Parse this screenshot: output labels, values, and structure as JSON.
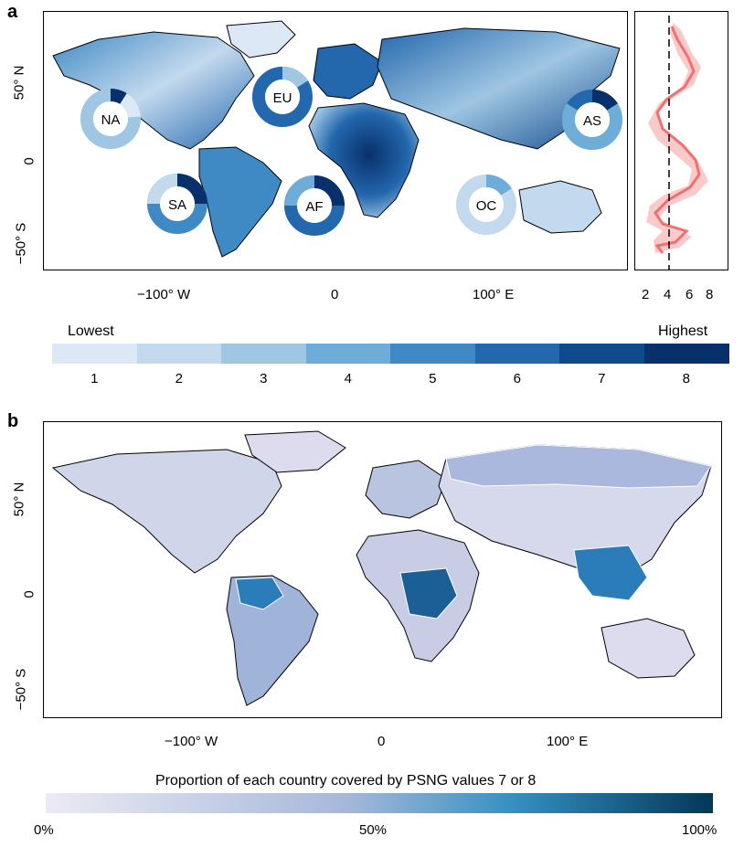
{
  "panel_a": {
    "letter": "a",
    "y_ticks": [
      "50° N",
      "0",
      "−50° S"
    ],
    "x_ticks": [
      "−100° W",
      "0",
      "100° E"
    ],
    "side_x_ticks": [
      "2",
      "4",
      "6",
      "8"
    ],
    "regions": [
      "NA",
      "EU",
      "AS",
      "SA",
      "AF",
      "OC"
    ]
  },
  "legend_a": {
    "low_label": "Lowest",
    "high_label": "Highest",
    "classes": [
      "1",
      "2",
      "3",
      "4",
      "5",
      "6",
      "7",
      "8"
    ],
    "colors": [
      "#dce8f5",
      "#c3d9ee",
      "#9fc6e2",
      "#6eadd8",
      "#3f8ac4",
      "#2367ad",
      "#0f4a8c",
      "#08306b"
    ]
  },
  "panel_b": {
    "letter": "b",
    "y_ticks": [
      "50° N",
      "0",
      "−50° S"
    ],
    "x_ticks": [
      "−100° W",
      "0",
      "100° E"
    ]
  },
  "legend_b": {
    "title": "Proportion of each country covered by PSNG values 7 or 8",
    "tick_labels": [
      "0%",
      "50%",
      "100%"
    ]
  }
}
